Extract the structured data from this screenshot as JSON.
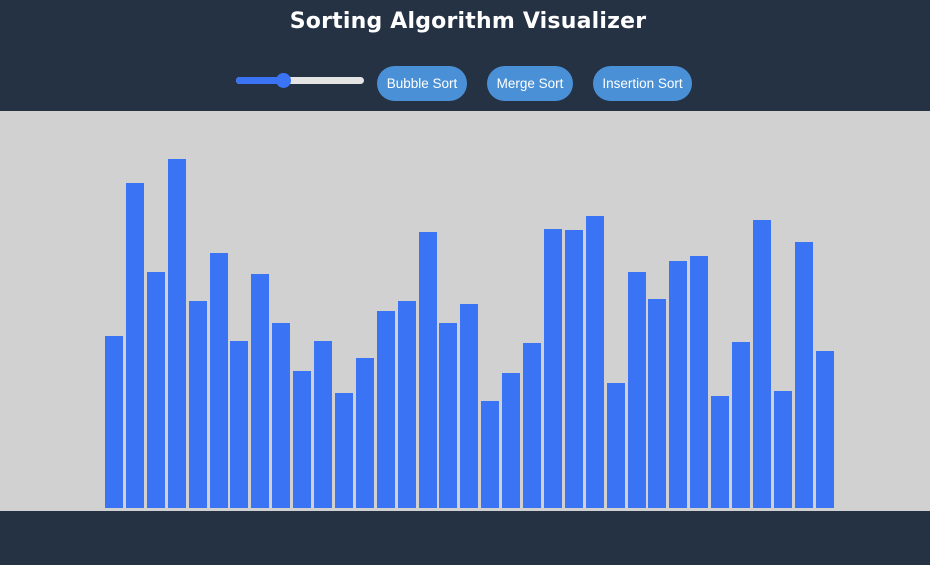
{
  "header": {
    "title": "Sorting Algorithm Visualizer"
  },
  "controls": {
    "array_size_slider": {
      "level_fraction": 0.37
    },
    "buttons": {
      "bubble_sort": "Bubble Sort",
      "merge_sort": "Merge Sort",
      "insertion_sort": "Insertion Sort"
    }
  },
  "colors": {
    "header_background": "#253244",
    "canvas_background": "#d1d1d1",
    "bar": "#3b73f5",
    "button": "#4a90d6",
    "slider_accent": "#3b73f5"
  },
  "chart_data": {
    "type": "bar",
    "values": [
      172,
      325,
      236,
      349,
      207,
      255,
      167,
      234,
      185,
      137,
      167,
      115,
      150,
      197,
      207,
      276,
      185,
      204,
      107,
      135,
      165,
      279,
      278,
      292,
      125,
      236,
      209,
      247,
      252,
      112,
      166,
      288,
      117,
      266,
      157
    ],
    "ylim": [
      0,
      400
    ]
  }
}
